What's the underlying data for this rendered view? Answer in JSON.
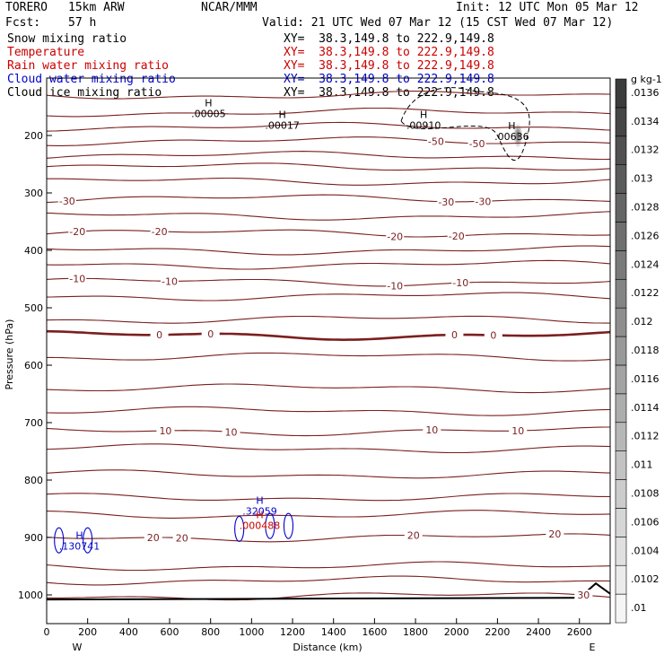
{
  "header": {
    "model": "TORERO",
    "resolution": "15km ARW",
    "org": "NCAR/MMM",
    "init": "Init: 12 UTC Mon 05 Mar 12",
    "fcst_label": "Fcst:",
    "fcst_value": "57 h",
    "valid": "Valid: 21 UTC Wed 07 Mar 12 (15 CST Wed 07 Mar 12)"
  },
  "fields": [
    {
      "name": "Snow mixing ratio",
      "xy": "XY=  38.3,149.8 to 222.9,149.8",
      "color": "#000000"
    },
    {
      "name": "Temperature",
      "xy": "XY=  38.3,149.8 to 222.9,149.8",
      "color": "#cc0000"
    },
    {
      "name": "Rain water mixing ratio",
      "xy": "XY=  38.3,149.8 to 222.9,149.8",
      "color": "#cc0000"
    },
    {
      "name": "Cloud water mixing ratio",
      "xy": "XY=  38.3,149.8 to 222.9,149.8",
      "color": "#0000cc"
    },
    {
      "name": "Cloud ice mixing ratio",
      "xy": "XY=  38.3,149.8 to 222.9,149.8",
      "color": "#000000"
    }
  ],
  "chart_data": {
    "type": "cross-section contour",
    "xlabel": "Distance (km)",
    "ylabel": "Pressure (hPa)",
    "xlim": [
      0,
      2750
    ],
    "ylim": [
      1050,
      100
    ],
    "x_ticks": [
      0,
      200,
      400,
      600,
      800,
      1000,
      1200,
      1400,
      1600,
      1800,
      2000,
      2200,
      2400,
      2600
    ],
    "y_ticks": [
      200,
      300,
      400,
      500,
      600,
      700,
      800,
      900,
      1000
    ],
    "x_end_labels": {
      "left": "W",
      "right": "E"
    },
    "colorbar": {
      "unit": "g kg-1",
      "ticks": [
        ".01",
        ".0102",
        ".0104",
        ".0106",
        ".0108",
        ".011",
        ".0112",
        ".0114",
        ".0116",
        ".0118",
        ".012",
        ".0122",
        ".0124",
        ".0126",
        ".0128",
        ".013",
        ".0132",
        ".0134",
        ".0136"
      ]
    },
    "temperature_isotherms": [
      {
        "label": "-50",
        "p": 210,
        "label_at": [
          1900,
          2100
        ]
      },
      {
        "label": "-30",
        "p": 310,
        "label_at": [
          100,
          1950,
          2130
        ]
      },
      {
        "label": "-20",
        "p": 370,
        "label_at": [
          150,
          550,
          1700,
          2000
        ]
      },
      {
        "label": "-10",
        "p": 455,
        "label_at": [
          150,
          600,
          1700,
          2020
        ]
      },
      {
        "label": "0",
        "p": 548,
        "label_at": [
          550,
          800,
          1990,
          2180
        ]
      },
      {
        "label": "10",
        "p": 715,
        "label_at": [
          580,
          900,
          1880,
          2300
        ]
      },
      {
        "label": "20",
        "p": 900,
        "label_at": [
          520,
          660,
          1790,
          2480
        ]
      },
      {
        "label": "30",
        "p": 1002,
        "label_at": [
          2620
        ]
      }
    ],
    "maxima": [
      {
        "mark": "H",
        "value": ".00005",
        "field": "Snow mixing ratio",
        "x": 790,
        "p": 165
      },
      {
        "mark": "H",
        "value": ".00017",
        "field": "Snow mixing ratio",
        "x": 1150,
        "p": 185
      },
      {
        "mark": "H",
        "value": ".00910",
        "field": "Cloud ice mixing ratio",
        "x": 1840,
        "p": 185
      },
      {
        "mark": "H",
        "value": ".00636",
        "field": "Cloud ice mixing ratio",
        "x": 2270,
        "p": 205
      },
      {
        "mark": "H",
        "value": ".130741",
        "field": "Cloud water mixing ratio",
        "x": 160,
        "p": 918
      },
      {
        "mark": "H",
        "value": ".32059",
        "field": "Cloud water mixing ratio",
        "x": 1040,
        "p": 857
      },
      {
        "mark": "H",
        "value": ".000488",
        "field": "Rain water mixing ratio",
        "x": 1040,
        "p": 882
      }
    ]
  }
}
